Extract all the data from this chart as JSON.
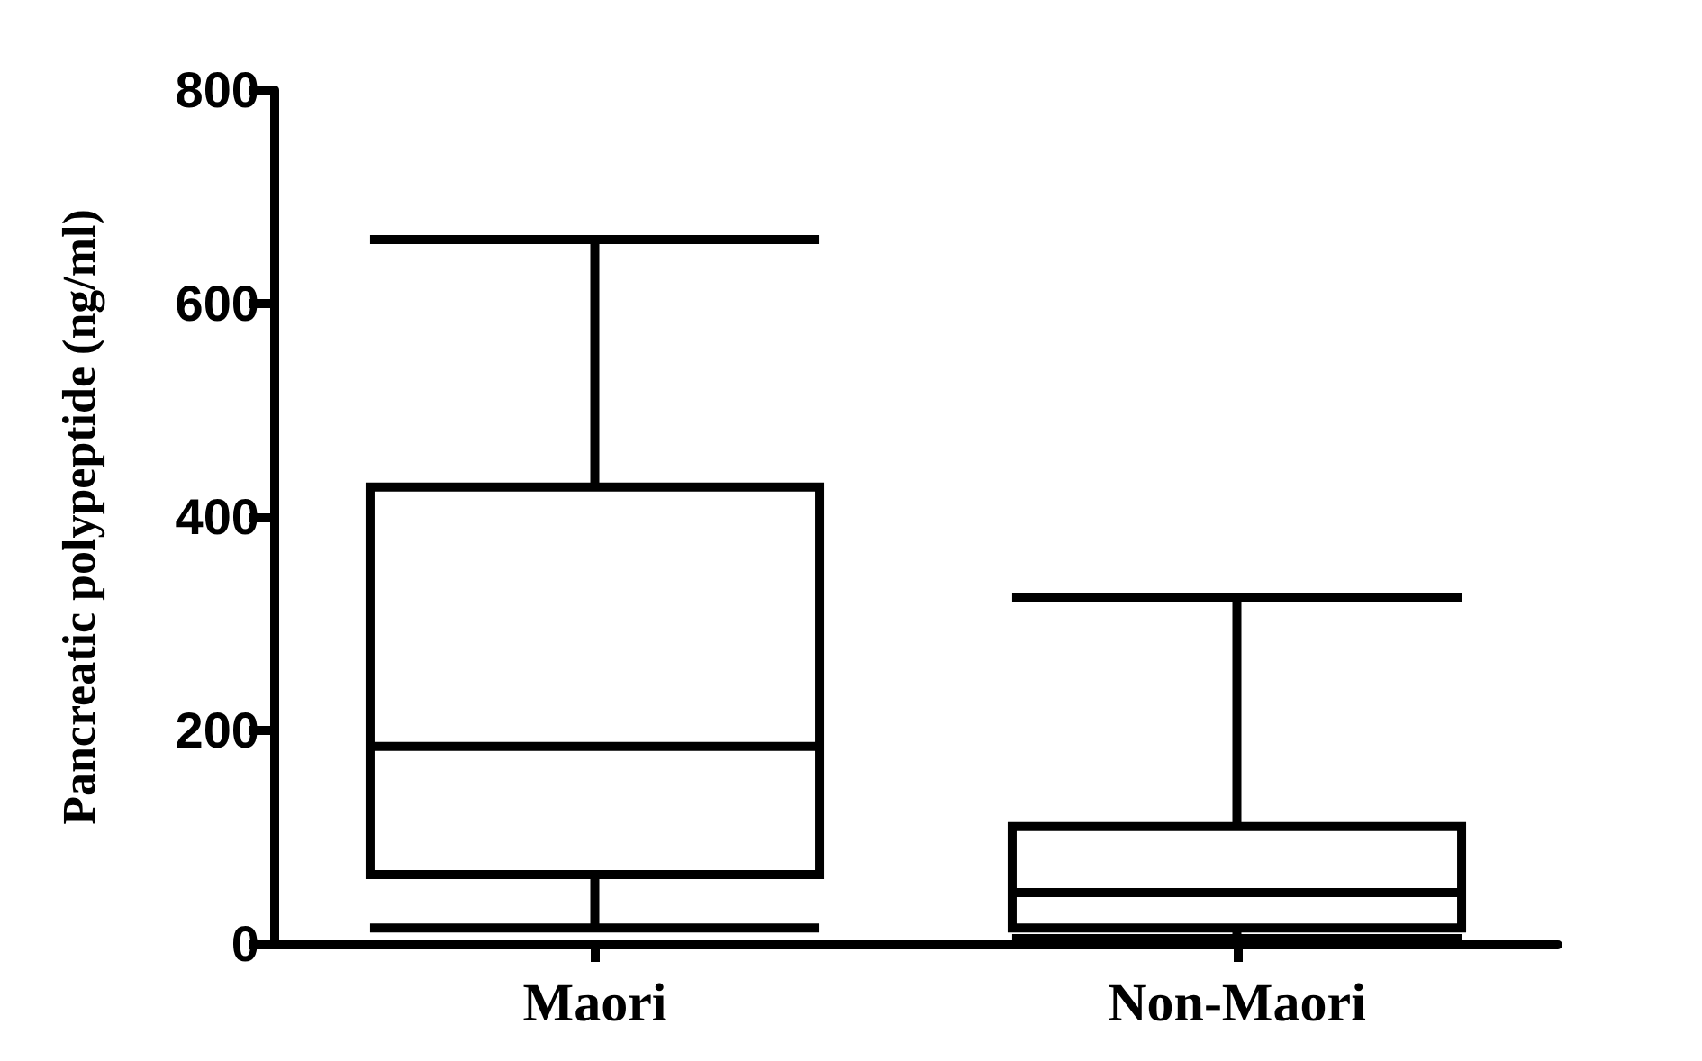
{
  "chart_data": {
    "type": "box",
    "ylabel": "Pancreatic polypeptide (ng/ml)",
    "categories": [
      "Maori",
      "Non-Maori"
    ],
    "boxes": [
      {
        "low": 15,
        "q1": 65,
        "median": 185,
        "q3": 428,
        "high": 660
      },
      {
        "low": 5,
        "q1": 15,
        "median": 48,
        "q3": 110,
        "high": 325
      }
    ],
    "color": "#000000",
    "ylim": [
      0,
      800
    ],
    "yticks": [
      0,
      200,
      400,
      600,
      800
    ],
    "grid": false
  }
}
